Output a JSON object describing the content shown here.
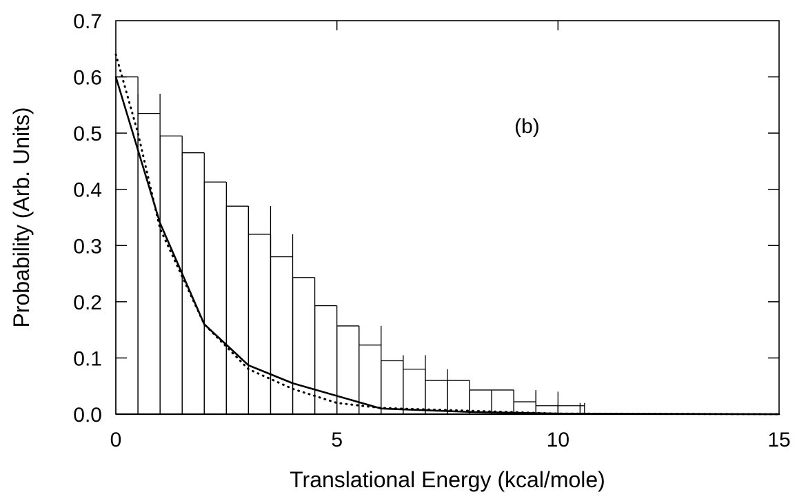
{
  "chart_data": {
    "type": "line",
    "title": "",
    "xlabel": "Translational Energy (kcal/mole)",
    "ylabel": "Probability (Arb. Units)",
    "xlim": [
      0,
      15
    ],
    "ylim": [
      0,
      0.7
    ],
    "xticks": [
      0,
      5,
      10,
      15
    ],
    "xtick_labels": [
      "0",
      "5",
      "10",
      "15"
    ],
    "yticks": [
      0.0,
      0.1,
      0.2,
      0.3,
      0.4,
      0.5,
      0.6,
      0.7
    ],
    "ytick_labels": [
      "0.0",
      "0.1",
      "0.2",
      "0.3",
      "0.4",
      "0.5",
      "0.6",
      "0.7"
    ],
    "annotations": [
      {
        "text": "(b)",
        "x": 9.3,
        "y": 0.5
      }
    ],
    "grid": false,
    "legend": "none",
    "colors": {
      "line": "#000000",
      "background": "#ffffff"
    },
    "series": [
      {
        "style": "solid",
        "x": [
          0,
          1,
          2,
          3,
          4,
          6,
          8,
          10,
          15
        ],
        "y": [
          0.6,
          0.34,
          0.16,
          0.087,
          0.055,
          0.01,
          0.004,
          0.001,
          0.0
        ]
      },
      {
        "style": "dotted",
        "x": [
          0,
          0.5,
          1,
          2,
          3,
          4,
          5,
          6,
          8,
          10,
          15
        ],
        "y": [
          0.64,
          0.5,
          0.33,
          0.16,
          0.08,
          0.045,
          0.02,
          0.011,
          0.006,
          0.001,
          0.0
        ]
      }
    ],
    "error_boxes": [
      {
        "x0": 0.0,
        "x1": 0.5,
        "yc": 0.6,
        "yhi": 0.6
      },
      {
        "x0": 0.5,
        "x1": 1.0,
        "yc": 0.535,
        "yhi": 0.57
      },
      {
        "x0": 1.0,
        "x1": 1.5,
        "yc": 0.495,
        "yhi": 0.495
      },
      {
        "x0": 1.5,
        "x1": 2.0,
        "yc": 0.465,
        "yhi": 0.465
      },
      {
        "x0": 2.0,
        "x1": 2.5,
        "yc": 0.413,
        "yhi": 0.413
      },
      {
        "x0": 2.5,
        "x1": 3.0,
        "yc": 0.37,
        "yhi": 0.37
      },
      {
        "x0": 3.0,
        "x1": 3.5,
        "yc": 0.32,
        "yhi": 0.37
      },
      {
        "x0": 3.5,
        "x1": 4.0,
        "yc": 0.28,
        "yhi": 0.32
      },
      {
        "x0": 4.0,
        "x1": 4.5,
        "yc": 0.243,
        "yhi": 0.243
      },
      {
        "x0": 4.5,
        "x1": 5.0,
        "yc": 0.193,
        "yhi": 0.193
      },
      {
        "x0": 5.0,
        "x1": 5.5,
        "yc": 0.157,
        "yhi": 0.157
      },
      {
        "x0": 5.5,
        "x1": 6.0,
        "yc": 0.123,
        "yhi": 0.157
      },
      {
        "x0": 6.0,
        "x1": 6.5,
        "yc": 0.095,
        "yhi": 0.095
      },
      {
        "x0": 6.5,
        "x1": 7.0,
        "yc": 0.08,
        "yhi": 0.105
      },
      {
        "x0": 7.0,
        "x1": 7.5,
        "yc": 0.06,
        "yhi": 0.08
      },
      {
        "x0": 7.5,
        "x1": 8.0,
        "yc": 0.06,
        "yhi": 0.06
      },
      {
        "x0": 8.0,
        "x1": 8.5,
        "yc": 0.043,
        "yhi": 0.043
      },
      {
        "x0": 8.5,
        "x1": 9.0,
        "yc": 0.043,
        "yhi": 0.043
      },
      {
        "x0": 9.0,
        "x1": 9.5,
        "yc": 0.022,
        "yhi": 0.043
      },
      {
        "x0": 9.5,
        "x1": 10.0,
        "yc": 0.015,
        "yhi": 0.04
      },
      {
        "x0": 10.0,
        "x1": 10.5,
        "yc": 0.015,
        "yhi": 0.015
      },
      {
        "x0": 10.5,
        "x1": 10.6,
        "yc": 0.015,
        "yhi": 0.02
      }
    ]
  }
}
